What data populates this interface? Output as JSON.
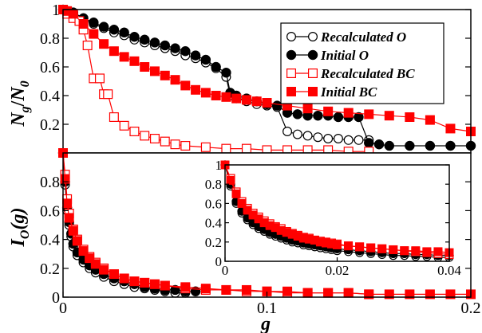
{
  "chart_data": [
    {
      "id": "top",
      "type": "line",
      "ylabel_main": "N",
      "ylabel_sub_num": "g",
      "ylabel_den": "N",
      "ylabel_sub_den": "0",
      "xlim": [
        0,
        0.2
      ],
      "ylim": [
        0,
        1
      ],
      "yticks": [
        "0.2",
        "0.4",
        "0.6",
        "0.8",
        "1"
      ],
      "ytick_values": [
        0.2,
        0.4,
        0.6,
        0.8,
        1
      ],
      "legend_position": "top-right",
      "series": [
        {
          "name": "Recalculated O",
          "color": "#000000",
          "marker": "circle-open",
          "x": [
            0.0,
            0.002,
            0.005,
            0.01,
            0.015,
            0.02,
            0.025,
            0.03,
            0.035,
            0.04,
            0.045,
            0.05,
            0.055,
            0.06,
            0.065,
            0.07,
            0.075,
            0.08,
            0.082,
            0.085,
            0.09,
            0.095,
            0.1,
            0.105,
            0.11,
            0.115,
            0.12,
            0.125,
            0.13,
            0.135,
            0.14,
            0.145,
            0.15
          ],
          "y": [
            1.0,
            0.99,
            0.97,
            0.93,
            0.9,
            0.87,
            0.84,
            0.82,
            0.79,
            0.77,
            0.75,
            0.73,
            0.71,
            0.68,
            0.66,
            0.63,
            0.59,
            0.53,
            0.4,
            0.38,
            0.36,
            0.34,
            0.33,
            0.32,
            0.15,
            0.13,
            0.12,
            0.11,
            0.1,
            0.1,
            0.09,
            0.09,
            0.09
          ]
        },
        {
          "name": "Initial O",
          "color": "#000000",
          "marker": "circle-filled",
          "x": [
            0.0,
            0.002,
            0.005,
            0.01,
            0.015,
            0.02,
            0.025,
            0.03,
            0.035,
            0.04,
            0.045,
            0.05,
            0.055,
            0.06,
            0.065,
            0.07,
            0.075,
            0.08,
            0.082,
            0.085,
            0.09,
            0.095,
            0.1,
            0.105,
            0.11,
            0.115,
            0.12,
            0.125,
            0.13,
            0.135,
            0.14,
            0.145,
            0.15,
            0.155,
            0.16,
            0.17,
            0.18,
            0.19,
            0.2
          ],
          "y": [
            1.0,
            0.99,
            0.98,
            0.94,
            0.91,
            0.88,
            0.86,
            0.84,
            0.81,
            0.79,
            0.77,
            0.75,
            0.73,
            0.71,
            0.68,
            0.65,
            0.6,
            0.56,
            0.42,
            0.4,
            0.38,
            0.36,
            0.34,
            0.33,
            0.28,
            0.27,
            0.26,
            0.26,
            0.26,
            0.25,
            0.25,
            0.25,
            0.07,
            0.06,
            0.05,
            0.05,
            0.05,
            0.05,
            0.05
          ]
        },
        {
          "name": "Recalculated BC",
          "color": "#ff0000",
          "marker": "square-open",
          "x": [
            0.0,
            0.002,
            0.005,
            0.008,
            0.01,
            0.012,
            0.015,
            0.018,
            0.02,
            0.022,
            0.025,
            0.03,
            0.035,
            0.04,
            0.045,
            0.05,
            0.055,
            0.06,
            0.07,
            0.08,
            0.09,
            0.1,
            0.11,
            0.12,
            0.13,
            0.14,
            0.15
          ],
          "y": [
            1.0,
            0.97,
            0.94,
            0.92,
            0.86,
            0.75,
            0.52,
            0.52,
            0.41,
            0.41,
            0.25,
            0.19,
            0.15,
            0.12,
            0.1,
            0.08,
            0.06,
            0.05,
            0.04,
            0.03,
            0.03,
            0.02,
            0.02,
            0.02,
            0.02,
            0.01,
            0.01
          ]
        },
        {
          "name": "Initial BC",
          "color": "#ff0000",
          "marker": "square-filled",
          "x": [
            0.0,
            0.002,
            0.005,
            0.01,
            0.015,
            0.02,
            0.025,
            0.03,
            0.035,
            0.04,
            0.045,
            0.05,
            0.055,
            0.06,
            0.065,
            0.07,
            0.075,
            0.08,
            0.085,
            0.09,
            0.095,
            0.1,
            0.11,
            0.12,
            0.13,
            0.14,
            0.15,
            0.16,
            0.17,
            0.18,
            0.19,
            0.2
          ],
          "y": [
            1.0,
            0.99,
            0.97,
            0.9,
            0.83,
            0.76,
            0.71,
            0.67,
            0.64,
            0.6,
            0.57,
            0.54,
            0.51,
            0.47,
            0.44,
            0.42,
            0.4,
            0.39,
            0.38,
            0.37,
            0.36,
            0.35,
            0.33,
            0.31,
            0.29,
            0.28,
            0.27,
            0.26,
            0.25,
            0.23,
            0.17,
            0.15
          ]
        }
      ]
    },
    {
      "id": "bottom",
      "type": "line",
      "xlabel": "g",
      "ylabel_main": "I",
      "ylabel_sub": "O",
      "ylabel_tail": "(g)",
      "xlim": [
        0,
        0.2
      ],
      "ylim": [
        0,
        1
      ],
      "xticks": [
        "0",
        "0.1",
        "0.2"
      ],
      "xtick_values": [
        0,
        0.1,
        0.2
      ],
      "yticks": [
        "0",
        "0.2",
        "0.4",
        "0.6",
        "0.8"
      ],
      "ytick_values": [
        0,
        0.2,
        0.4,
        0.6,
        0.8
      ],
      "series": [
        {
          "name": "Recalculated O",
          "color": "#000000",
          "marker": "circle-open",
          "x": [
            0.0,
            0.001,
            0.002,
            0.003,
            0.004,
            0.005,
            0.007,
            0.01,
            0.013,
            0.016,
            0.02,
            0.025,
            0.03,
            0.035,
            0.04,
            0.045,
            0.05,
            0.055,
            0.06
          ],
          "y": [
            1.0,
            0.78,
            0.6,
            0.5,
            0.42,
            0.35,
            0.29,
            0.24,
            0.2,
            0.17,
            0.14,
            0.11,
            0.09,
            0.07,
            0.06,
            0.05,
            0.04,
            0.03,
            0.03
          ]
        },
        {
          "name": "Initial O",
          "color": "#000000",
          "marker": "circle-filled",
          "x": [
            0.0,
            0.001,
            0.002,
            0.003,
            0.004,
            0.005,
            0.007,
            0.01,
            0.013,
            0.016,
            0.02,
            0.025,
            0.03,
            0.035,
            0.04,
            0.045,
            0.05,
            0.055,
            0.06,
            0.065
          ],
          "y": [
            1.0,
            0.8,
            0.62,
            0.52,
            0.44,
            0.37,
            0.31,
            0.26,
            0.22,
            0.19,
            0.16,
            0.13,
            0.11,
            0.09,
            0.07,
            0.06,
            0.05,
            0.05,
            0.04,
            0.04
          ]
        },
        {
          "name": "Recalculated BC",
          "color": "#ff0000",
          "marker": "square-open",
          "x": [
            0.0,
            0.001,
            0.002,
            0.003,
            0.005,
            0.007,
            0.01,
            0.013,
            0.016,
            0.02,
            0.025,
            0.03,
            0.035,
            0.04,
            0.045,
            0.05,
            0.06,
            0.07,
            0.08,
            0.09,
            0.1,
            0.11,
            0.12,
            0.13,
            0.14,
            0.15
          ],
          "y": [
            1.0,
            0.85,
            0.68,
            0.58,
            0.47,
            0.4,
            0.33,
            0.28,
            0.24,
            0.2,
            0.16,
            0.13,
            0.11,
            0.1,
            0.09,
            0.08,
            0.06,
            0.05,
            0.05,
            0.04,
            0.04,
            0.03,
            0.03,
            0.03,
            0.03,
            0.02
          ]
        },
        {
          "name": "Initial BC",
          "color": "#ff0000",
          "marker": "square-filled",
          "x": [
            0.0,
            0.001,
            0.002,
            0.003,
            0.005,
            0.007,
            0.01,
            0.013,
            0.016,
            0.02,
            0.025,
            0.03,
            0.035,
            0.04,
            0.045,
            0.05,
            0.06,
            0.07,
            0.08,
            0.09,
            0.1,
            0.11,
            0.12,
            0.13,
            0.14,
            0.15,
            0.16,
            0.17,
            0.18,
            0.19,
            0.2
          ],
          "y": [
            1.0,
            0.82,
            0.65,
            0.55,
            0.46,
            0.39,
            0.32,
            0.27,
            0.23,
            0.19,
            0.16,
            0.13,
            0.11,
            0.1,
            0.09,
            0.08,
            0.07,
            0.06,
            0.05,
            0.05,
            0.04,
            0.04,
            0.03,
            0.03,
            0.03,
            0.02,
            0.02,
            0.02,
            0.02,
            0.02,
            0.02
          ]
        }
      ]
    },
    {
      "id": "inset",
      "type": "line",
      "xlim": [
        0,
        0.04
      ],
      "ylim": [
        0,
        1
      ],
      "xticks": [
        "0",
        "0.02",
        "0.04"
      ],
      "xtick_values": [
        0,
        0.02,
        0.04
      ],
      "yticks": [
        "0",
        "0.2",
        "0.4",
        "0.6",
        "0.8",
        "1"
      ],
      "ytick_values": [
        0,
        0.2,
        0.4,
        0.6,
        0.8,
        1
      ],
      "series": [
        {
          "name": "Recalculated O",
          "color": "#000000",
          "marker": "circle-open",
          "x": [
            0.0,
            0.001,
            0.002,
            0.003,
            0.004,
            0.005,
            0.006,
            0.007,
            0.008,
            0.009,
            0.01,
            0.011,
            0.012,
            0.013,
            0.014,
            0.015,
            0.016,
            0.017,
            0.018,
            0.019,
            0.02,
            0.022,
            0.024,
            0.026,
            0.028,
            0.03,
            0.032,
            0.034,
            0.036,
            0.038,
            0.04
          ],
          "y": [
            1.0,
            0.78,
            0.6,
            0.5,
            0.43,
            0.38,
            0.34,
            0.31,
            0.28,
            0.26,
            0.24,
            0.22,
            0.2,
            0.19,
            0.17,
            0.16,
            0.15,
            0.14,
            0.13,
            0.12,
            0.11,
            0.1,
            0.09,
            0.08,
            0.07,
            0.06,
            0.06,
            0.05,
            0.05,
            0.04,
            0.04
          ]
        },
        {
          "name": "Initial O",
          "color": "#000000",
          "marker": "circle-filled",
          "x": [
            0.0,
            0.001,
            0.002,
            0.003,
            0.004,
            0.005,
            0.006,
            0.007,
            0.008,
            0.009,
            0.01,
            0.011,
            0.012,
            0.013,
            0.014,
            0.015,
            0.016,
            0.017,
            0.018,
            0.019,
            0.02,
            0.022,
            0.024,
            0.026,
            0.028,
            0.03,
            0.032,
            0.034,
            0.036,
            0.038,
            0.04
          ],
          "y": [
            1.0,
            0.8,
            0.62,
            0.52,
            0.45,
            0.4,
            0.36,
            0.33,
            0.3,
            0.28,
            0.26,
            0.24,
            0.22,
            0.21,
            0.19,
            0.18,
            0.17,
            0.16,
            0.15,
            0.14,
            0.13,
            0.12,
            0.11,
            0.1,
            0.09,
            0.08,
            0.08,
            0.07,
            0.07,
            0.06,
            0.06
          ]
        },
        {
          "name": "Recalculated BC",
          "color": "#ff0000",
          "marker": "square-open",
          "x": [
            0.0,
            0.001,
            0.002,
            0.003,
            0.004,
            0.005,
            0.006,
            0.007,
            0.008,
            0.009,
            0.01,
            0.011,
            0.012,
            0.013,
            0.014,
            0.015,
            0.016,
            0.017,
            0.018,
            0.019,
            0.02,
            0.022,
            0.024,
            0.026,
            0.028,
            0.03,
            0.032,
            0.034,
            0.036,
            0.038,
            0.04
          ],
          "y": [
            1.0,
            0.86,
            0.72,
            0.62,
            0.55,
            0.5,
            0.46,
            0.42,
            0.39,
            0.36,
            0.34,
            0.31,
            0.29,
            0.27,
            0.25,
            0.24,
            0.22,
            0.21,
            0.2,
            0.19,
            0.18,
            0.16,
            0.15,
            0.14,
            0.13,
            0.12,
            0.11,
            0.1,
            0.09,
            0.08,
            0.07
          ]
        },
        {
          "name": "Initial BC",
          "color": "#ff0000",
          "marker": "square-filled",
          "x": [
            0.0,
            0.001,
            0.002,
            0.003,
            0.004,
            0.005,
            0.006,
            0.007,
            0.008,
            0.009,
            0.01,
            0.011,
            0.012,
            0.013,
            0.014,
            0.015,
            0.016,
            0.017,
            0.018,
            0.019,
            0.02,
            0.022,
            0.024,
            0.026,
            0.028,
            0.03,
            0.032,
            0.034,
            0.036,
            0.038,
            0.04
          ],
          "y": [
            1.0,
            0.84,
            0.7,
            0.6,
            0.53,
            0.48,
            0.44,
            0.4,
            0.37,
            0.35,
            0.32,
            0.3,
            0.28,
            0.26,
            0.24,
            0.23,
            0.22,
            0.2,
            0.19,
            0.18,
            0.17,
            0.16,
            0.15,
            0.14,
            0.13,
            0.12,
            0.11,
            0.11,
            0.1,
            0.1,
            0.09
          ]
        }
      ]
    }
  ],
  "legend": {
    "entries": [
      "Recalculated O",
      "Initial O",
      "Recalculated BC",
      "Initial BC"
    ]
  }
}
